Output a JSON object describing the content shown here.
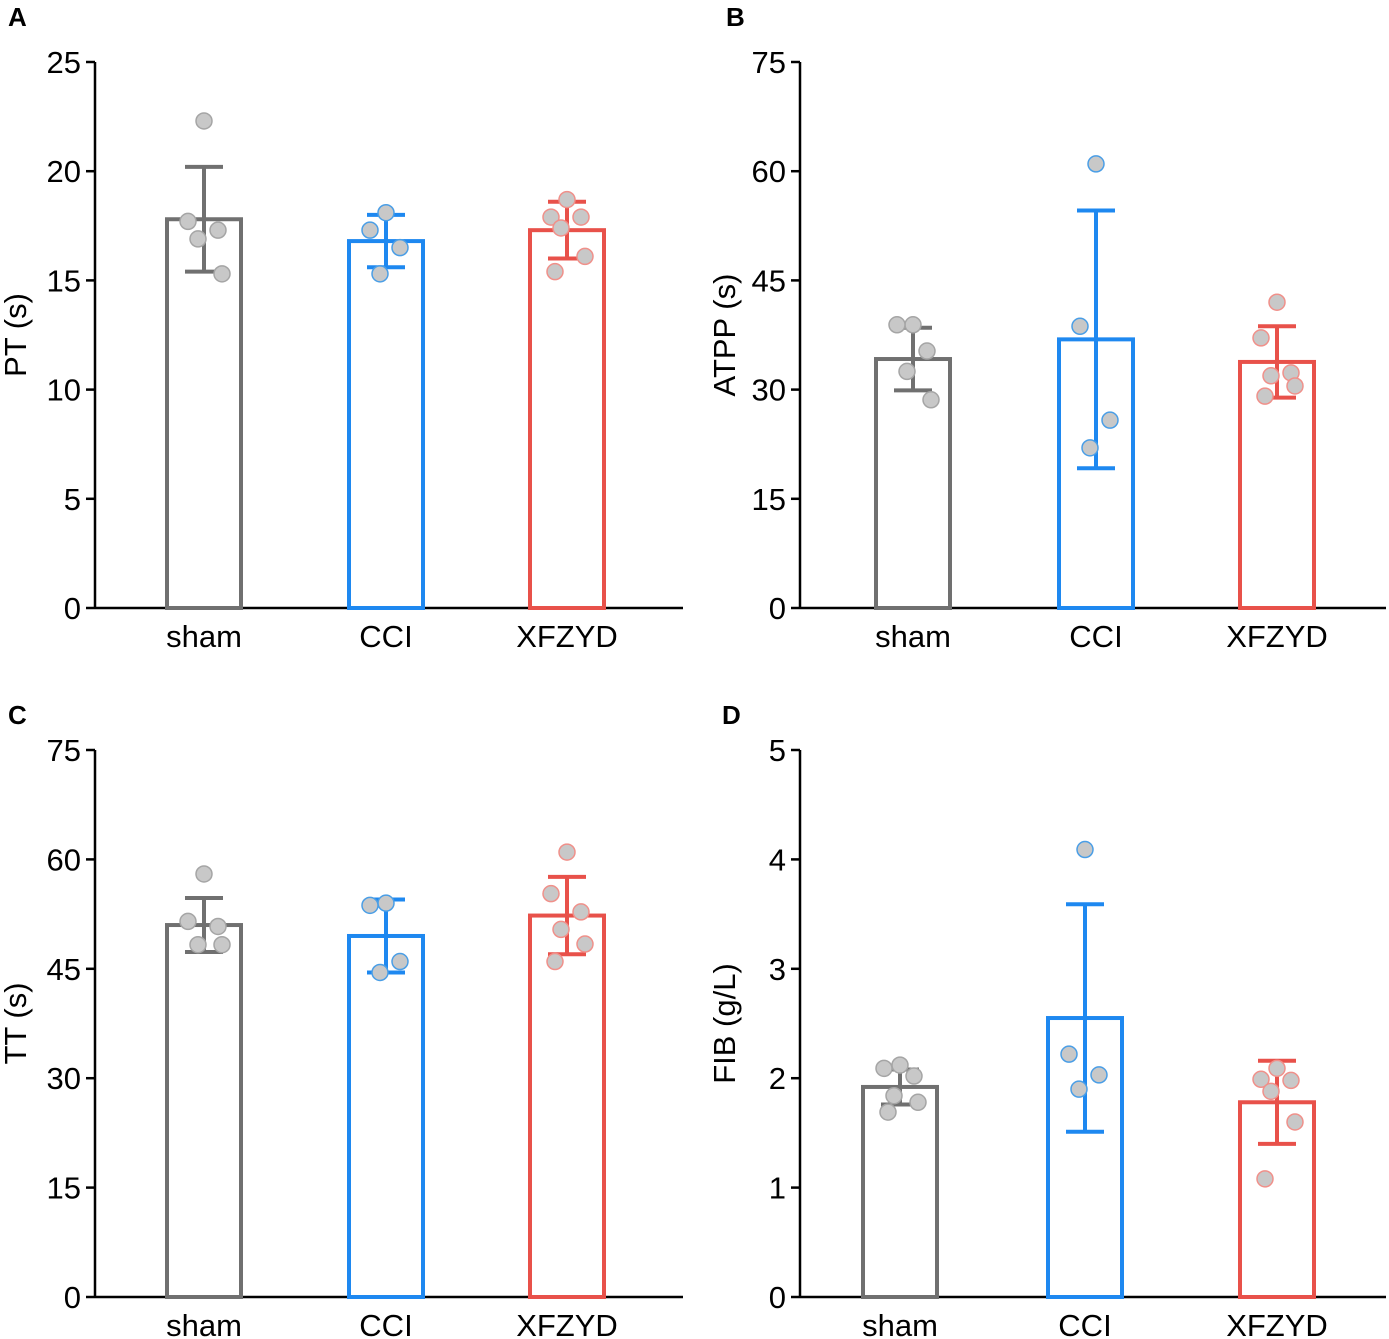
{
  "colors": {
    "sham": "#707070",
    "CCI": "#1E88F0",
    "XFZYD": "#E8514A",
    "dot_fill": "#c8c8c8",
    "dot_stroke_sham": "#a5a5a5",
    "dot_stroke_CCI": "#4a9ee6",
    "dot_stroke_XFZYD": "#f0908a"
  },
  "chart_data": [
    {
      "type": "bar",
      "panel": "A",
      "title": "",
      "xlabel": "",
      "ylabel": "PT (s)",
      "categories": [
        "sham",
        "CCI",
        "XFZYD"
      ],
      "ylim": [
        0,
        25
      ],
      "yticks": [
        0,
        5,
        10,
        15,
        20,
        25
      ],
      "means": [
        17.8,
        16.8,
        17.3
      ],
      "errors": [
        2.4,
        1.2,
        1.3
      ],
      "points": [
        [
          22.3,
          17.7,
          17.3,
          16.9,
          15.3
        ],
        [
          18.1,
          17.3,
          16.5,
          15.3
        ],
        [
          18.7,
          17.9,
          17.9,
          17.4,
          16.1,
          15.4
        ]
      ]
    },
    {
      "type": "bar",
      "panel": "B",
      "title": "",
      "xlabel": "",
      "ylabel": "ATPP (s)",
      "categories": [
        "sham",
        "CCI",
        "XFZYD"
      ],
      "ylim": [
        0,
        75
      ],
      "yticks": [
        0,
        15,
        30,
        45,
        60,
        75
      ],
      "means": [
        34.2,
        36.9,
        33.8
      ],
      "errors": [
        4.3,
        17.7,
        4.9
      ],
      "points": [
        [
          38.9,
          38.9,
          35.3,
          32.5,
          28.6
        ],
        [
          61.0,
          38.7,
          25.8,
          22.0
        ],
        [
          42.0,
          37.1,
          32.3,
          31.9,
          30.5,
          29.1
        ]
      ]
    },
    {
      "type": "bar",
      "panel": "C",
      "title": "",
      "xlabel": "",
      "ylabel": "TT (s)",
      "categories": [
        "sham",
        "CCI",
        "XFZYD"
      ],
      "ylim": [
        0,
        75
      ],
      "yticks": [
        0,
        15,
        30,
        45,
        60,
        75
      ],
      "means": [
        51.0,
        49.5,
        52.3
      ],
      "errors": [
        3.7,
        5.0,
        5.3
      ],
      "points": [
        [
          58.0,
          51.5,
          50.8,
          48.3,
          48.3
        ],
        [
          54.0,
          53.7,
          46.0,
          44.5
        ],
        [
          61.0,
          55.3,
          52.8,
          50.4,
          48.4,
          46.0
        ]
      ]
    },
    {
      "type": "bar",
      "panel": "D",
      "title": "",
      "xlabel": "",
      "ylabel": "FIB (g/L)",
      "categories": [
        "sham",
        "CCI",
        "XFZYD"
      ],
      "ylim": [
        0,
        5
      ],
      "yticks": [
        0,
        1,
        2,
        3,
        4,
        5
      ],
      "means": [
        1.92,
        2.55,
        1.78
      ],
      "errors": [
        0.16,
        1.04,
        0.38
      ],
      "points": [
        [
          2.12,
          2.09,
          2.02,
          1.84,
          1.78,
          1.69
        ],
        [
          4.09,
          2.22,
          2.03,
          1.9
        ],
        [
          2.09,
          1.99,
          1.98,
          1.88,
          1.6,
          1.08
        ]
      ]
    }
  ]
}
